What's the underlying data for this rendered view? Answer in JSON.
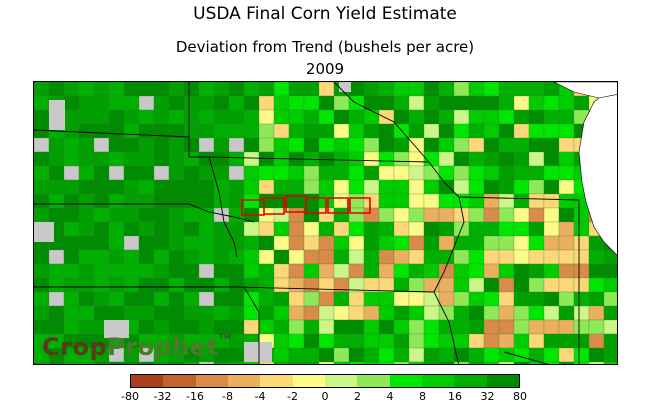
{
  "title": "USDA Final Corn Yield Estimate",
  "subtitle": "Deviation from Trend (bushels per acre)",
  "year": "2009",
  "logo": {
    "part1": "Crop",
    "part2": "Prophet",
    "tm": "TM"
  },
  "legend": {
    "ticks": [
      "-80",
      "-32",
      "-16",
      "-8",
      "-4",
      "-2",
      "0",
      "2",
      "4",
      "8",
      "16",
      "32",
      "80"
    ],
    "colors": [
      "#a8401e",
      "#c0652e",
      "#d98c4a",
      "#eab060",
      "#fcd878",
      "#fdfb88",
      "#ccf58a",
      "#8fe858",
      "#00e600",
      "#00cc00",
      "#00b000",
      "#008c00"
    ]
  },
  "map": {
    "region": "Central US Corn Belt counties",
    "no_data_color": "#c8c8c8",
    "lake_color": "#ffffff"
  }
}
